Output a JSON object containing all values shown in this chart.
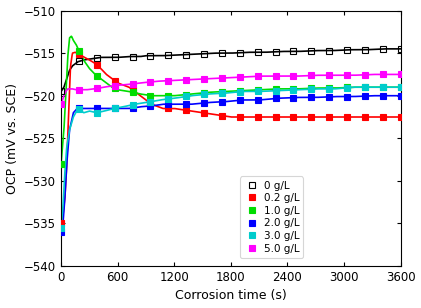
{
  "xlabel": "Corrosion time (s)",
  "ylabel": "OCP (mV vs. SCE)",
  "xlim": [
    0,
    3600
  ],
  "ylim": [
    -540,
    -510
  ],
  "yticks": [
    -540,
    -535,
    -530,
    -525,
    -520,
    -515,
    -510
  ],
  "xticks": [
    0,
    600,
    1200,
    1800,
    2400,
    3000,
    3600
  ],
  "series": [
    {
      "label": "0 g/L",
      "color": "#000000",
      "marker": "s",
      "fillstyle": "none",
      "time": [
        0,
        30,
        60,
        90,
        120,
        180,
        240,
        300,
        360,
        420,
        480,
        540,
        600,
        720,
        840,
        900,
        1080,
        1260,
        1440,
        1620,
        1800,
        1980,
        2160,
        2340,
        2520,
        2700,
        2880,
        3060,
        3240,
        3420,
        3600
      ],
      "ocp": [
        -519.5,
        -519,
        -518,
        -517,
        -516.5,
        -516,
        -515.8,
        -515.7,
        -515.6,
        -515.5,
        -515.5,
        -515.5,
        -515.5,
        -515.4,
        -515.4,
        -515.3,
        -515.3,
        -515.2,
        -515.1,
        -515,
        -515,
        -514.9,
        -514.9,
        -514.8,
        -514.8,
        -514.7,
        -514.7,
        -514.6,
        -514.6,
        -514.5,
        -514.5
      ]
    },
    {
      "label": "0.2 g/L",
      "color": "#ff0000",
      "marker": "s",
      "fillstyle": "full",
      "time": [
        0,
        20,
        40,
        60,
        80,
        100,
        120,
        150,
        200,
        250,
        300,
        360,
        420,
        480,
        540,
        600,
        720,
        840,
        960,
        1080,
        1200,
        1380,
        1500,
        1620,
        1800,
        1980,
        2160,
        2340,
        2520,
        2700,
        2880,
        3060,
        3240,
        3420,
        3600
      ],
      "ocp": [
        -535,
        -534,
        -532,
        -528,
        -522,
        -516.5,
        -515,
        -514.9,
        -515.2,
        -515.5,
        -515.8,
        -516.2,
        -516.8,
        -517.5,
        -518,
        -518.5,
        -519,
        -520,
        -521,
        -521.5,
        -521.5,
        -521.8,
        -522,
        -522.2,
        -522.5,
        -522.5,
        -522.5,
        -522.5,
        -522.5,
        -522.5,
        -522.5,
        -522.5,
        -522.5,
        -522.5,
        -522.5
      ]
    },
    {
      "label": "1.0 g/L",
      "color": "#00dd00",
      "marker": "s",
      "fillstyle": "full",
      "time": [
        0,
        15,
        30,
        50,
        70,
        90,
        110,
        130,
        160,
        200,
        250,
        300,
        360,
        420,
        480,
        540,
        600,
        720,
        840,
        960,
        1080,
        1200,
        1380,
        1560,
        1740,
        1920,
        2100,
        2300,
        2500,
        2700,
        2900,
        3100,
        3300,
        3500,
        3600
      ],
      "ocp": [
        -528,
        -526,
        -524,
        -520,
        -515.5,
        -513.2,
        -513,
        -513.5,
        -514,
        -515,
        -516,
        -516.8,
        -517.5,
        -518,
        -518.5,
        -519,
        -519.3,
        -519.5,
        -519.8,
        -520,
        -520,
        -520,
        -519.8,
        -519.6,
        -519.5,
        -519.4,
        -519.3,
        -519.2,
        -519.2,
        -519.1,
        -519.1,
        -519,
        -519,
        -519,
        -519
      ]
    },
    {
      "label": "2.0 g/L",
      "color": "#0000ff",
      "marker": "s",
      "fillstyle": "full",
      "time": [
        0,
        20,
        40,
        60,
        90,
        130,
        170,
        220,
        280,
        340,
        400,
        460,
        540,
        620,
        720,
        840,
        960,
        1080,
        1200,
        1380,
        1560,
        1740,
        1920,
        2100,
        2300,
        2500,
        2700,
        2900,
        3100,
        3300,
        3600
      ],
      "ocp": [
        -536,
        -535,
        -532,
        -528,
        -524,
        -522,
        -521.5,
        -521.5,
        -521.5,
        -521.5,
        -521.5,
        -521.5,
        -521.5,
        -521.5,
        -521.5,
        -521.3,
        -521.2,
        -521,
        -521,
        -521,
        -520.8,
        -520.7,
        -520.5,
        -520.5,
        -520.3,
        -520.2,
        -520.2,
        -520.1,
        -520.1,
        -520,
        -520
      ]
    },
    {
      "label": "3.0 g/L",
      "color": "#00cccc",
      "marker": "s",
      "fillstyle": "full",
      "time": [
        0,
        20,
        40,
        60,
        90,
        130,
        180,
        240,
        300,
        380,
        460,
        560,
        660,
        780,
        900,
        1050,
        1200,
        1380,
        1560,
        1740,
        1920,
        2100,
        2300,
        2500,
        2700,
        2900,
        3100,
        3300,
        3600
      ],
      "ocp": [
        -535.5,
        -533,
        -529,
        -526,
        -524,
        -522.5,
        -521.5,
        -522,
        -521.8,
        -522,
        -521.8,
        -521.5,
        -521.3,
        -521,
        -520.8,
        -520.5,
        -520.3,
        -520,
        -519.8,
        -519.7,
        -519.5,
        -519.5,
        -519.4,
        -519.3,
        -519.2,
        -519.2,
        -519,
        -519,
        -519
      ]
    },
    {
      "label": "5.0 g/L",
      "color": "#ff00ff",
      "marker": "s",
      "fillstyle": "full",
      "time": [
        0,
        15,
        30,
        50,
        70,
        90,
        120,
        160,
        210,
        270,
        350,
        450,
        570,
        690,
        840,
        1020,
        1200,
        1380,
        1560,
        1740,
        1920,
        2100,
        2300,
        2500,
        2700,
        2900,
        3100,
        3300,
        3600
      ],
      "ocp": [
        -521,
        -520.5,
        -520,
        -519.5,
        -519.2,
        -519.2,
        -519.2,
        -519.3,
        -519.3,
        -519.3,
        -519.2,
        -519,
        -518.8,
        -518.7,
        -518.5,
        -518.3,
        -518.2,
        -518.1,
        -518,
        -517.9,
        -517.8,
        -517.7,
        -517.7,
        -517.7,
        -517.6,
        -517.6,
        -517.6,
        -517.5,
        -517.5
      ]
    }
  ]
}
